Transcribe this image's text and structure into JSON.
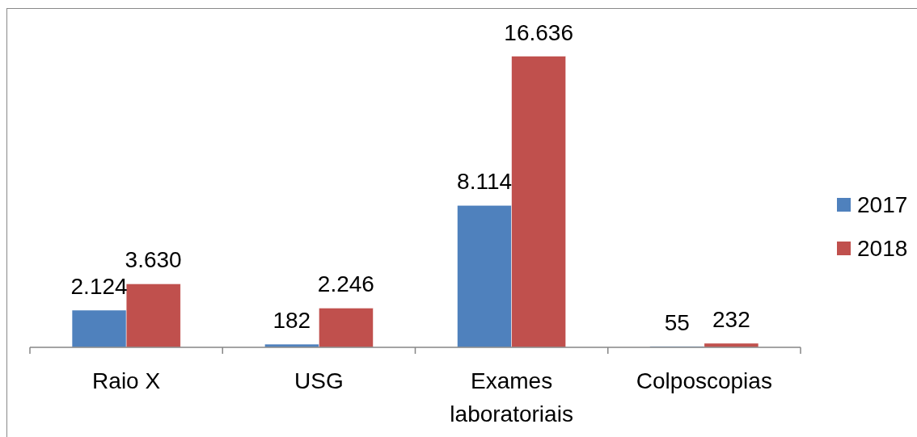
{
  "chart_data": {
    "type": "bar",
    "categories": [
      "Raio X",
      "USG",
      "Exames laboratoriais",
      "Colposcopias"
    ],
    "series": [
      {
        "name": "2017",
        "color": "#4f81bd",
        "values": [
          2124,
          182,
          8114,
          55
        ],
        "value_labels": [
          "2.124",
          "182",
          "8.114",
          "55"
        ]
      },
      {
        "name": "2018",
        "color": "#c0504d",
        "values": [
          3630,
          2246,
          16636,
          232
        ],
        "value_labels": [
          "3.630",
          "2.246",
          "16.636",
          "232"
        ]
      }
    ],
    "legend": "right",
    "tick_labels": "x"
  }
}
